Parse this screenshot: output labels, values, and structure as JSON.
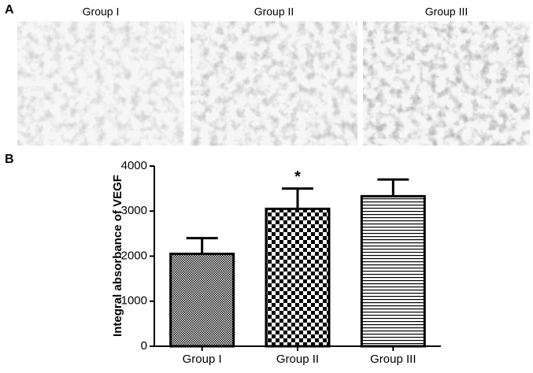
{
  "panel_a": {
    "label": "A",
    "images": [
      "Group I",
      "Group II",
      "Group III"
    ]
  },
  "chart_data": {
    "type": "bar",
    "panel_label": "B",
    "ylabel": "Integral absorbance of VEGF",
    "categories": [
      "Group I",
      "Group II",
      "Group III"
    ],
    "values": [
      2050,
      3050,
      3330
    ],
    "errors": [
      350,
      450,
      370
    ],
    "annotations": [
      null,
      "*",
      null
    ],
    "ylim": [
      0,
      4000
    ],
    "yticks": [
      0,
      1000,
      2000,
      3000,
      4000
    ],
    "color": "#000000"
  }
}
